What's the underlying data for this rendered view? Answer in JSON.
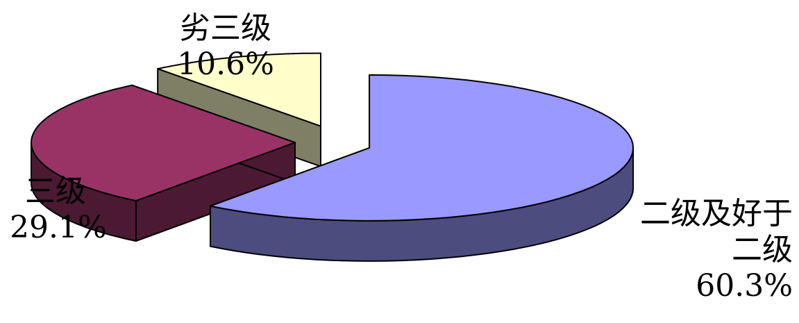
{
  "chart_data": {
    "type": "pie",
    "title": "",
    "legend": "none",
    "slices": [
      {
        "name_lines": [
          "二级及好于",
          "二级"
        ],
        "value": 60.3,
        "label": "60.3%",
        "top_color": "#9999ff",
        "side_color": "#4c4c7f"
      },
      {
        "name_lines": [
          "三级"
        ],
        "value": 29.1,
        "label": "29.1%",
        "top_color": "#993366",
        "side_color": "#4c1933"
      },
      {
        "name_lines": [
          "劣三级"
        ],
        "value": 10.6,
        "label": "10.6%",
        "top_color": "#ffffcc",
        "side_color": "#7f7f66"
      }
    ]
  }
}
